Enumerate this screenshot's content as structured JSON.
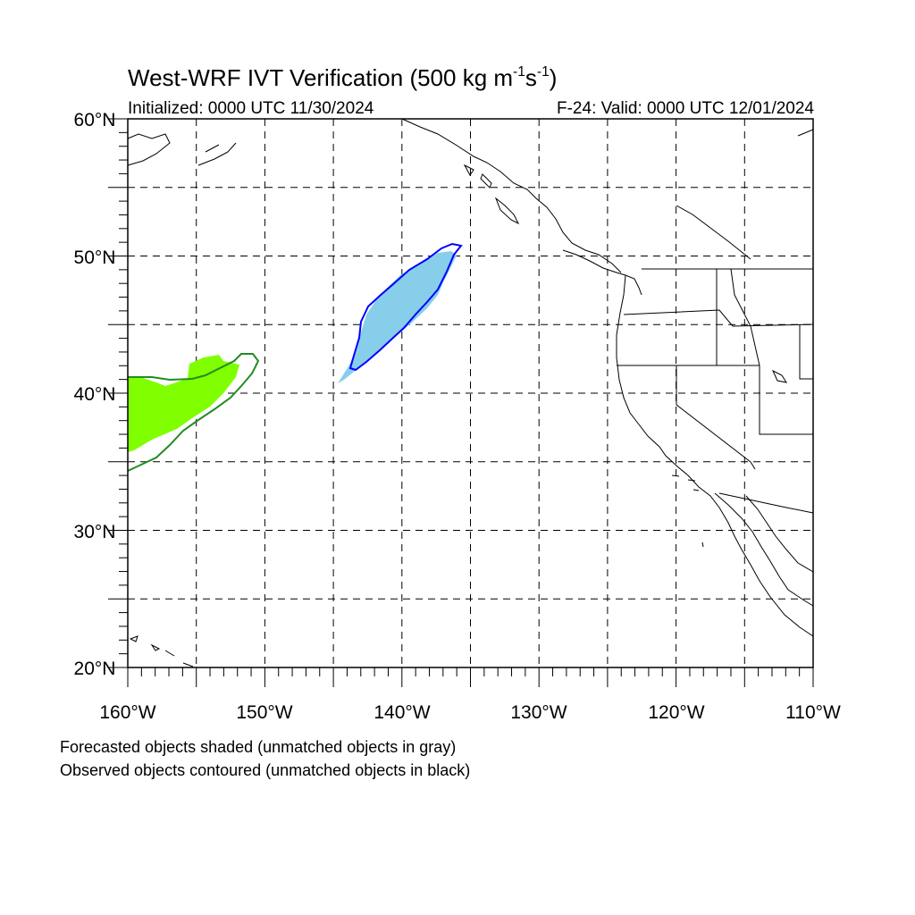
{
  "title": {
    "main": "West-WRF IVT Verification (500 kg m",
    "exp1": "-1",
    "mid": "s",
    "exp2": "-1",
    "end": ")"
  },
  "initialized": "Initialized: 0000 UTC 11/30/2024",
  "valid": "F-24: Valid: 0000 UTC 12/01/2024",
  "map": {
    "lon_range": [
      -160,
      -110
    ],
    "lat_range": [
      20,
      60
    ],
    "lat_ticks": [
      20,
      30,
      40,
      50,
      60
    ],
    "lat_labels": [
      "20°N",
      "30°N",
      "40°N",
      "50°N",
      "60°N"
    ],
    "lon_ticks": [
      -160,
      -150,
      -140,
      -130,
      -120,
      -110
    ],
    "lon_labels": [
      "160°W",
      "150°W",
      "140°W",
      "130°W",
      "120°W",
      "110°W"
    ],
    "gridlines": "dashed every 5°",
    "objects": [
      {
        "id": "pair-1",
        "forecast_fill": "#7fff00",
        "observed_contour": "#228b22",
        "location": "western edge near 35–43°N, 150–160°W"
      },
      {
        "id": "pair-2",
        "forecast_fill": "#87ceeb",
        "observed_contour": "#0000ff",
        "location": "41–51°N, 136–145°W"
      }
    ]
  },
  "notes": [
    "Forecasted objects shaded (unmatched objects in gray)",
    "Observed objects contoured (unmatched objects in black)"
  ]
}
